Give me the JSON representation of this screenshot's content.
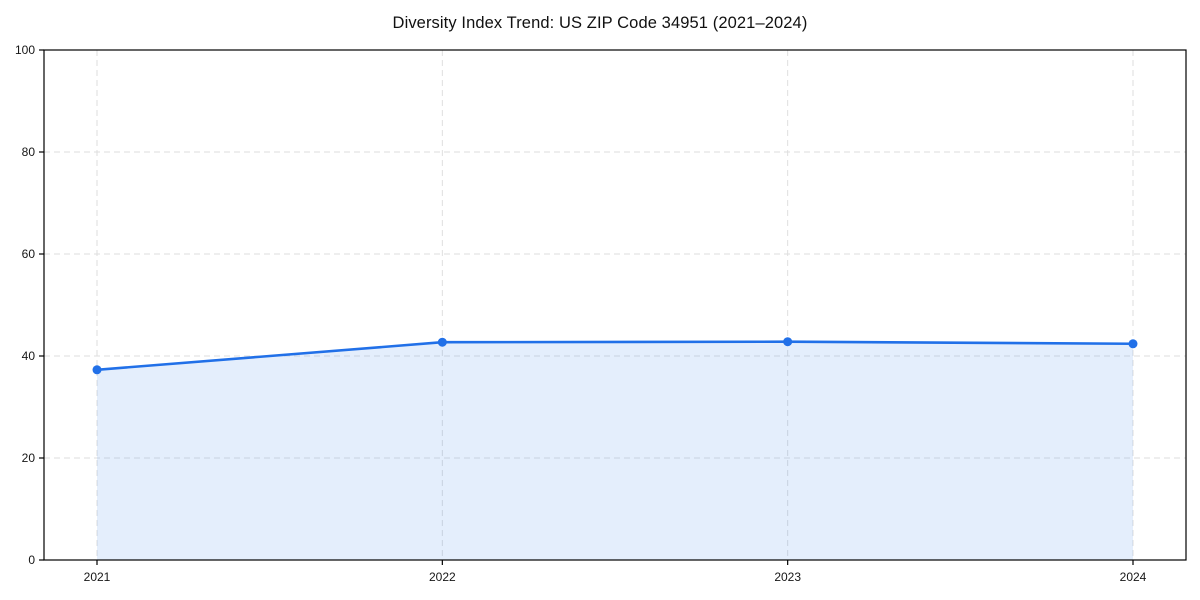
{
  "page": {
    "background_color": "#ffffff"
  },
  "chart_data": {
    "type": "area",
    "title": "Diversity Index Trend: US ZIP Code 34951 (2021–2024)",
    "categories": [
      "2021",
      "2022",
      "2023",
      "2024"
    ],
    "series": [
      {
        "name": "Diversity Index",
        "values": [
          37.3,
          42.7,
          42.8,
          42.4
        ]
      }
    ],
    "xlabel": "",
    "ylabel": "",
    "ylim": [
      0,
      100
    ],
    "yticks": [
      0,
      20,
      40,
      60,
      80,
      100
    ],
    "grid": true,
    "grid_style": "dashed",
    "legend_position": "none",
    "line_color": "#2170e8",
    "fill_color": "#2170e8",
    "fill_opacity": 0.12,
    "marker": "circle",
    "grid_color": "#dedede",
    "axis_color": "#000000",
    "tick_label_color": "#161616",
    "title_color": "#111111"
  }
}
